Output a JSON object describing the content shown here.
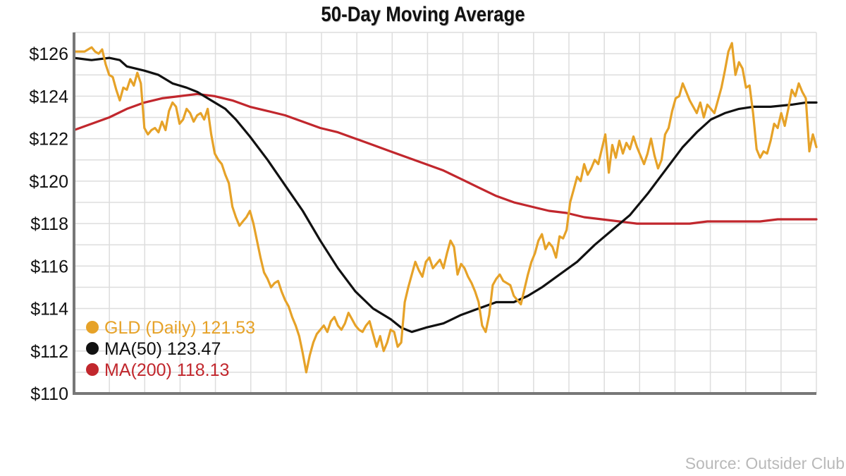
{
  "chart_data": {
    "type": "line",
    "title": "50-Day Moving Average",
    "source": "Source: Outsider Club",
    "y_tick_labels": [
      "$110",
      "$112",
      "$114",
      "$116",
      "$118",
      "$120",
      "$122",
      "$124",
      "$126"
    ],
    "y_ticks": [
      110,
      112,
      114,
      116,
      118,
      120,
      122,
      124,
      126
    ],
    "ylim": [
      110,
      127
    ],
    "x_points": 210,
    "grid": true,
    "legend_position": "bottom-left",
    "series": [
      {
        "name": "GLD (Daily)",
        "legend_label": "GLD (Daily) 121.53",
        "color": "#E6A228",
        "knots": [
          [
            0,
            126.1
          ],
          [
            6,
            126.1
          ],
          [
            10,
            126.3
          ],
          [
            12,
            126.1
          ],
          [
            14,
            126.0
          ],
          [
            16,
            126.2
          ],
          [
            18,
            125.5
          ],
          [
            20,
            125.0
          ],
          [
            22,
            124.9
          ],
          [
            24,
            124.3
          ],
          [
            26,
            123.8
          ],
          [
            28,
            124.4
          ],
          [
            30,
            124.3
          ],
          [
            32,
            124.8
          ],
          [
            34,
            124.5
          ],
          [
            36,
            125.1
          ],
          [
            38,
            124.6
          ],
          [
            40,
            122.5
          ],
          [
            42,
            122.2
          ],
          [
            44,
            122.4
          ],
          [
            46,
            122.5
          ],
          [
            48,
            122.3
          ],
          [
            50,
            122.8
          ],
          [
            52,
            122.4
          ],
          [
            54,
            123.3
          ],
          [
            56,
            123.7
          ],
          [
            58,
            123.5
          ],
          [
            60,
            122.7
          ],
          [
            62,
            122.9
          ],
          [
            64,
            123.4
          ],
          [
            66,
            123.2
          ],
          [
            68,
            122.8
          ],
          [
            70,
            123.1
          ],
          [
            72,
            123.2
          ],
          [
            74,
            122.9
          ],
          [
            76,
            123.4
          ],
          [
            78,
            122.2
          ],
          [
            80,
            121.3
          ],
          [
            82,
            121.0
          ],
          [
            84,
            120.8
          ],
          [
            86,
            120.3
          ],
          [
            88,
            119.9
          ],
          [
            90,
            118.8
          ],
          [
            92,
            118.3
          ],
          [
            94,
            117.9
          ],
          [
            96,
            118.1
          ],
          [
            98,
            118.3
          ],
          [
            100,
            118.6
          ],
          [
            102,
            118.0
          ],
          [
            104,
            117.2
          ],
          [
            106,
            116.4
          ],
          [
            108,
            115.7
          ],
          [
            110,
            115.4
          ],
          [
            112,
            115.0
          ],
          [
            114,
            115.2
          ],
          [
            116,
            115.3
          ],
          [
            118,
            114.8
          ],
          [
            120,
            114.4
          ],
          [
            122,
            114.1
          ],
          [
            124,
            113.6
          ],
          [
            126,
            113.2
          ],
          [
            128,
            112.7
          ],
          [
            130,
            111.9
          ],
          [
            132,
            111.0
          ],
          [
            134,
            111.8
          ],
          [
            136,
            112.4
          ],
          [
            138,
            112.8
          ],
          [
            140,
            113.0
          ],
          [
            142,
            113.2
          ],
          [
            144,
            112.9
          ],
          [
            146,
            113.4
          ],
          [
            148,
            113.6
          ],
          [
            150,
            113.2
          ],
          [
            152,
            113.0
          ],
          [
            154,
            113.3
          ],
          [
            156,
            113.8
          ],
          [
            158,
            113.5
          ],
          [
            160,
            113.2
          ],
          [
            162,
            113.0
          ],
          [
            164,
            112.9
          ],
          [
            166,
            113.2
          ],
          [
            168,
            113.4
          ],
          [
            170,
            112.8
          ],
          [
            172,
            112.2
          ],
          [
            174,
            112.7
          ],
          [
            176,
            112.0
          ],
          [
            178,
            112.4
          ],
          [
            180,
            113.0
          ],
          [
            182,
            112.9
          ],
          [
            184,
            112.2
          ],
          [
            186,
            112.4
          ],
          [
            188,
            114.3
          ],
          [
            190,
            115.0
          ],
          [
            192,
            115.6
          ],
          [
            194,
            116.2
          ],
          [
            196,
            115.8
          ],
          [
            198,
            115.5
          ],
          [
            200,
            116.2
          ],
          [
            202,
            116.4
          ],
          [
            204,
            115.9
          ],
          [
            206,
            116.1
          ],
          [
            208,
            116.3
          ],
          [
            210,
            115.9
          ],
          [
            212,
            116.6
          ],
          [
            214,
            117.2
          ],
          [
            216,
            116.9
          ],
          [
            218,
            115.6
          ],
          [
            220,
            116.1
          ],
          [
            222,
            115.9
          ],
          [
            224,
            115.5
          ],
          [
            226,
            115.2
          ],
          [
            228,
            114.8
          ],
          [
            230,
            114.3
          ],
          [
            232,
            113.2
          ],
          [
            234,
            112.9
          ],
          [
            236,
            113.7
          ],
          [
            238,
            115.1
          ],
          [
            240,
            115.4
          ],
          [
            242,
            115.6
          ],
          [
            244,
            115.3
          ],
          [
            246,
            115.2
          ],
          [
            248,
            115.1
          ],
          [
            250,
            114.6
          ],
          [
            252,
            114.4
          ],
          [
            254,
            114.2
          ],
          [
            256,
            114.9
          ],
          [
            258,
            115.6
          ],
          [
            260,
            116.2
          ],
          [
            262,
            116.6
          ],
          [
            264,
            117.2
          ],
          [
            266,
            117.5
          ],
          [
            268,
            116.8
          ],
          [
            270,
            117.1
          ],
          [
            272,
            116.9
          ],
          [
            274,
            116.4
          ],
          [
            276,
            117.4
          ],
          [
            278,
            117.3
          ],
          [
            280,
            117.7
          ],
          [
            282,
            119.0
          ],
          [
            284,
            119.6
          ],
          [
            286,
            120.2
          ],
          [
            288,
            120.0
          ],
          [
            290,
            120.8
          ],
          [
            292,
            120.3
          ],
          [
            294,
            120.6
          ],
          [
            296,
            121.0
          ],
          [
            298,
            120.8
          ],
          [
            300,
            121.5
          ],
          [
            302,
            122.2
          ],
          [
            304,
            120.4
          ],
          [
            306,
            121.7
          ],
          [
            308,
            121.1
          ],
          [
            310,
            121.9
          ],
          [
            312,
            121.3
          ],
          [
            314,
            121.8
          ],
          [
            316,
            121.5
          ],
          [
            318,
            122.1
          ],
          [
            320,
            121.6
          ],
          [
            322,
            121.2
          ],
          [
            324,
            120.8
          ],
          [
            326,
            121.3
          ],
          [
            328,
            122.0
          ],
          [
            330,
            121.2
          ],
          [
            332,
            120.6
          ],
          [
            334,
            121.0
          ],
          [
            336,
            122.2
          ],
          [
            338,
            122.5
          ],
          [
            340,
            123.3
          ],
          [
            342,
            123.9
          ],
          [
            344,
            124.0
          ],
          [
            346,
            124.6
          ],
          [
            348,
            124.2
          ],
          [
            350,
            123.8
          ],
          [
            352,
            123.5
          ],
          [
            354,
            123.2
          ],
          [
            356,
            123.7
          ],
          [
            358,
            123.0
          ],
          [
            360,
            123.6
          ],
          [
            362,
            123.4
          ],
          [
            364,
            123.2
          ],
          [
            366,
            123.8
          ],
          [
            368,
            124.4
          ],
          [
            370,
            125.2
          ],
          [
            372,
            126.1
          ],
          [
            374,
            126.5
          ],
          [
            376,
            125.0
          ],
          [
            378,
            125.6
          ],
          [
            380,
            125.3
          ],
          [
            382,
            124.4
          ],
          [
            384,
            124.5
          ],
          [
            386,
            123.2
          ],
          [
            388,
            121.5
          ],
          [
            390,
            121.1
          ],
          [
            392,
            121.4
          ],
          [
            394,
            121.3
          ],
          [
            396,
            121.9
          ],
          [
            398,
            122.7
          ],
          [
            400,
            122.5
          ],
          [
            402,
            123.2
          ],
          [
            404,
            122.6
          ],
          [
            406,
            123.4
          ],
          [
            408,
            124.3
          ],
          [
            410,
            124.0
          ],
          [
            412,
            124.6
          ],
          [
            414,
            124.2
          ],
          [
            416,
            123.9
          ],
          [
            418,
            121.4
          ],
          [
            420,
            122.2
          ],
          [
            422,
            121.6
          ]
        ],
        "note": "knots are [point_index*0.5, price]; sampled daily path"
      },
      {
        "name": "MA(50)",
        "legend_label": "MA(50) 123.47",
        "color": "#111111",
        "knots": [
          [
            0,
            125.8
          ],
          [
            10,
            125.7
          ],
          [
            20,
            125.8
          ],
          [
            26,
            125.7
          ],
          [
            30,
            125.4
          ],
          [
            40,
            125.2
          ],
          [
            48,
            125.0
          ],
          [
            56,
            124.6
          ],
          [
            64,
            124.4
          ],
          [
            70,
            124.2
          ],
          [
            78,
            123.8
          ],
          [
            86,
            123.4
          ],
          [
            92,
            122.9
          ],
          [
            100,
            122.1
          ],
          [
            110,
            121.0
          ],
          [
            120,
            119.8
          ],
          [
            130,
            118.6
          ],
          [
            140,
            117.2
          ],
          [
            150,
            115.9
          ],
          [
            160,
            114.8
          ],
          [
            170,
            114.0
          ],
          [
            180,
            113.5
          ],
          [
            186,
            113.1
          ],
          [
            192,
            112.9
          ],
          [
            200,
            113.1
          ],
          [
            210,
            113.3
          ],
          [
            220,
            113.7
          ],
          [
            230,
            114.0
          ],
          [
            240,
            114.3
          ],
          [
            250,
            114.3
          ],
          [
            258,
            114.6
          ],
          [
            266,
            115.0
          ],
          [
            276,
            115.6
          ],
          [
            286,
            116.2
          ],
          [
            296,
            117.0
          ],
          [
            306,
            117.7
          ],
          [
            316,
            118.4
          ],
          [
            326,
            119.4
          ],
          [
            336,
            120.5
          ],
          [
            346,
            121.6
          ],
          [
            354,
            122.3
          ],
          [
            362,
            122.9
          ],
          [
            370,
            123.2
          ],
          [
            378,
            123.4
          ],
          [
            386,
            123.5
          ],
          [
            396,
            123.5
          ],
          [
            408,
            123.6
          ],
          [
            416,
            123.7
          ],
          [
            422,
            123.7
          ]
        ],
        "note": "knots are [point_index*0.5, price]"
      },
      {
        "name": "MA(200)",
        "legend_label": "MA(200) 118.13",
        "color": "#C1272D",
        "knots": [
          [
            0,
            122.4
          ],
          [
            10,
            122.7
          ],
          [
            20,
            123.0
          ],
          [
            30,
            123.4
          ],
          [
            40,
            123.7
          ],
          [
            50,
            123.9
          ],
          [
            60,
            124.0
          ],
          [
            70,
            124.1
          ],
          [
            80,
            124.0
          ],
          [
            90,
            123.8
          ],
          [
            100,
            123.5
          ],
          [
            110,
            123.3
          ],
          [
            120,
            123.1
          ],
          [
            130,
            122.8
          ],
          [
            140,
            122.5
          ],
          [
            150,
            122.3
          ],
          [
            160,
            122.0
          ],
          [
            170,
            121.7
          ],
          [
            180,
            121.4
          ],
          [
            190,
            121.1
          ],
          [
            200,
            120.8
          ],
          [
            210,
            120.5
          ],
          [
            220,
            120.1
          ],
          [
            230,
            119.7
          ],
          [
            240,
            119.3
          ],
          [
            250,
            119.0
          ],
          [
            260,
            118.8
          ],
          [
            270,
            118.6
          ],
          [
            280,
            118.5
          ],
          [
            290,
            118.3
          ],
          [
            300,
            118.2
          ],
          [
            310,
            118.1
          ],
          [
            320,
            118.0
          ],
          [
            330,
            118.0
          ],
          [
            340,
            118.0
          ],
          [
            350,
            118.0
          ],
          [
            360,
            118.1
          ],
          [
            370,
            118.1
          ],
          [
            380,
            118.1
          ],
          [
            390,
            118.1
          ],
          [
            400,
            118.2
          ],
          [
            410,
            118.2
          ],
          [
            422,
            118.2
          ]
        ],
        "note": "knots are [point_index*0.5, price]"
      }
    ]
  }
}
